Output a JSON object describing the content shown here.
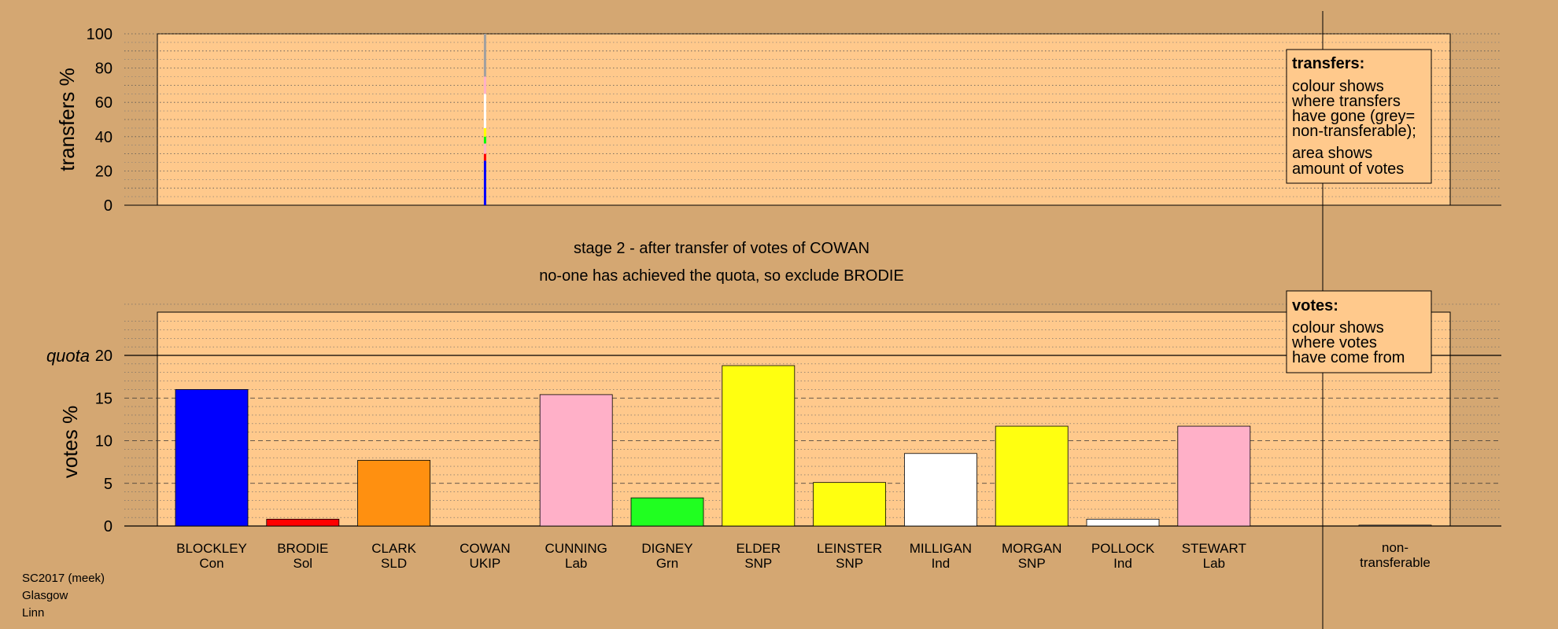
{
  "messages": {
    "stage": "stage 2 - after transfer of votes of COWAN",
    "action": "no-one has achieved the quota, so exclude BRODIE"
  },
  "legend_transfers": {
    "title": "transfers:",
    "lines": [
      "colour shows",
      "where transfers",
      "have gone (grey=",
      "non-transferable);",
      "area shows",
      "amount of votes"
    ]
  },
  "legend_votes": {
    "title": "votes:",
    "lines": [
      "colour shows",
      "where votes",
      "have come from"
    ]
  },
  "footer": [
    "SC2017 (meek)",
    "Glasgow",
    "Linn"
  ],
  "chart_data": [
    {
      "type": "bar",
      "ylabel": "transfers %",
      "ylim": [
        0,
        100
      ],
      "yticks": [
        0,
        20,
        40,
        60,
        80,
        100
      ],
      "transfer_from": "COWAN",
      "transfer_pct": 100,
      "transfer_breakdown": [
        {
          "to": "BLOCKLEY",
          "pct": 26,
          "color": "#0000ff"
        },
        {
          "to": "BRODIE",
          "pct": 4,
          "color": "#ff0000"
        },
        {
          "to": "CUNNING",
          "pct": 6,
          "color": "#ffb0c8"
        },
        {
          "to": "DIGNEY",
          "pct": 4,
          "color": "#00ff00"
        },
        {
          "to": "ELDER",
          "pct": 5,
          "color": "#ffff00"
        },
        {
          "to": "MILLIGAN",
          "pct": 20,
          "color": "#ffffff"
        },
        {
          "to": "STEWART",
          "pct": 10,
          "color": "#ffb0c8"
        },
        {
          "to": "non-transferable",
          "pct": 25,
          "color": "#a0a0a0"
        }
      ]
    },
    {
      "type": "bar",
      "ylabel": "votes %",
      "quota_label": "quota",
      "quota": 20,
      "ylim": [
        0,
        25
      ],
      "yticks": [
        0,
        5,
        10,
        15,
        20
      ],
      "categories": [
        "BLOCKLEY",
        "BRODIE",
        "CLARK",
        "COWAN",
        "CUNNING",
        "DIGNEY",
        "ELDER",
        "LEINSTER",
        "MILLIGAN",
        "MORGAN",
        "POLLOCK",
        "STEWART"
      ],
      "parties": [
        "Con",
        "Sol",
        "SLD",
        "UKIP",
        "Lab",
        "Grn",
        "SNP",
        "SNP",
        "Ind",
        "SNP",
        "Ind",
        "Lab"
      ],
      "values": [
        16.0,
        0.8,
        7.7,
        0.0,
        15.4,
        3.3,
        18.8,
        5.1,
        8.5,
        11.7,
        0.8,
        11.7
      ],
      "colors": [
        "#0000ff",
        "#ff0000",
        "#ff9010",
        "#800080",
        "#ffb0c8",
        "#20ff20",
        "#ffff10",
        "#ffff10",
        "#ffffff",
        "#ffff10",
        "#ffffff",
        "#ffb0c8"
      ],
      "nontransferable": {
        "label_lines": [
          "non-",
          "transferable"
        ],
        "value": 0.1,
        "color": "#a0a0a0"
      }
    }
  ]
}
